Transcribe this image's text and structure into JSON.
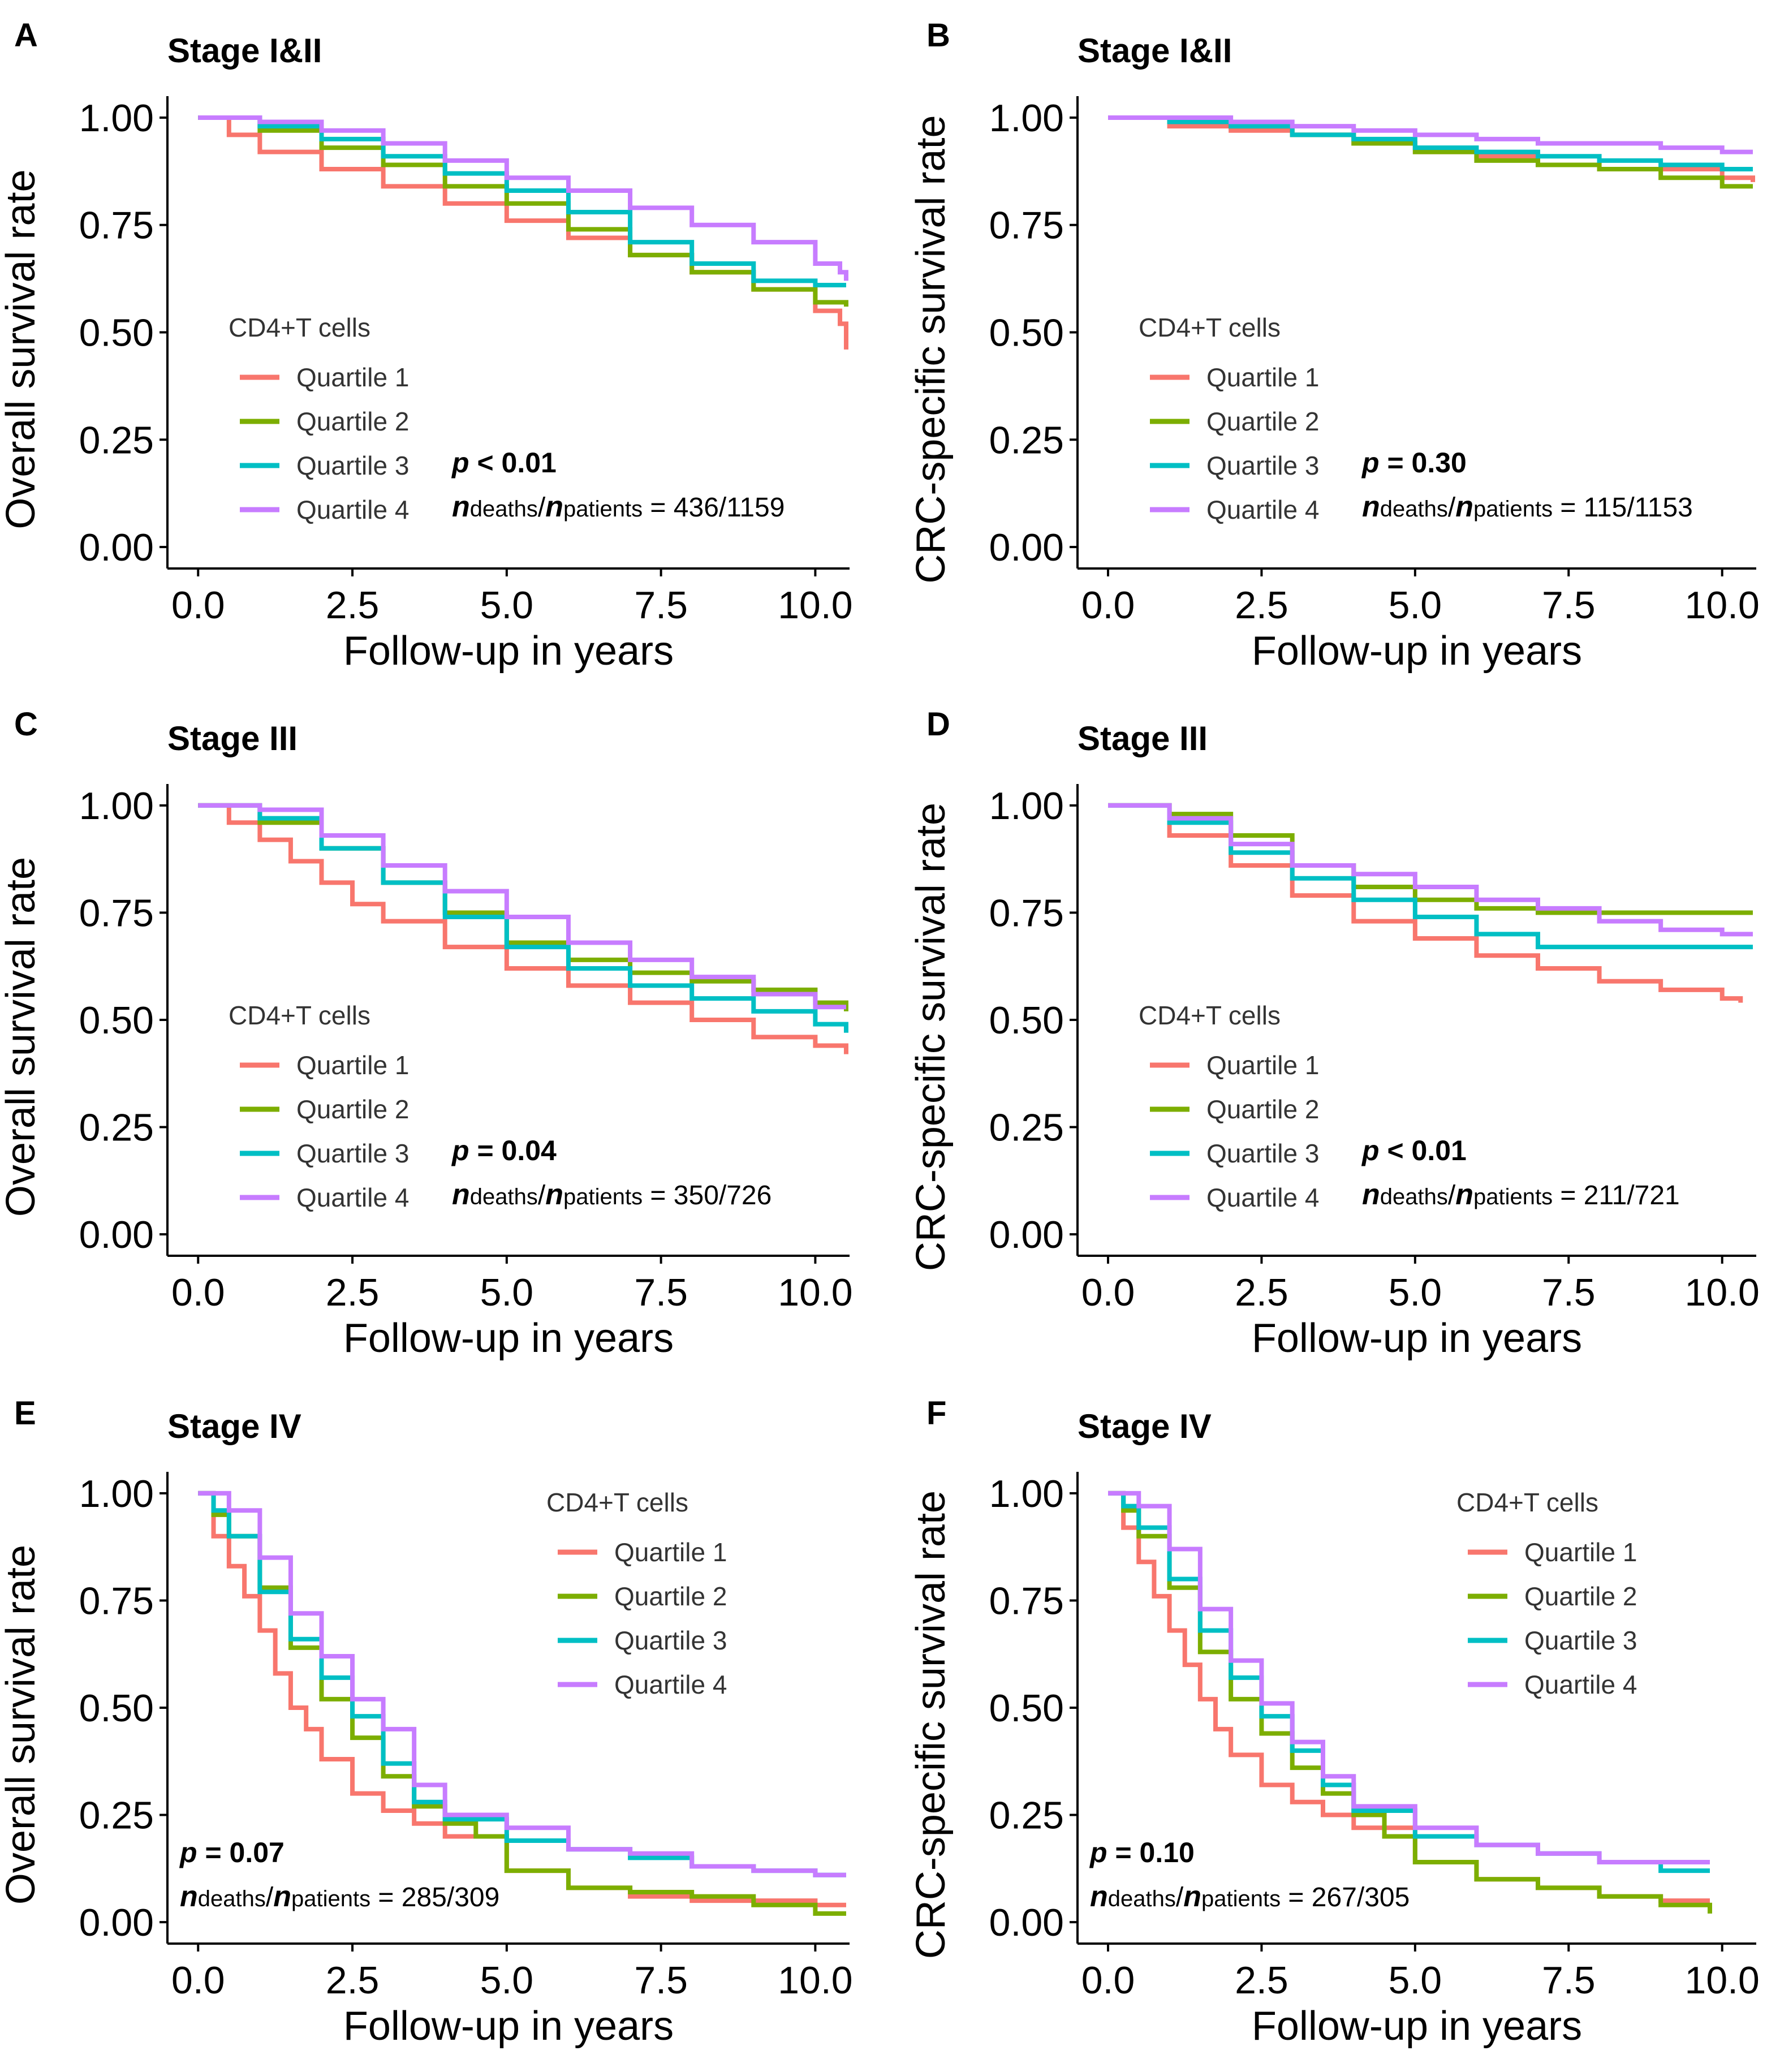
{
  "figure": {
    "legend_title": "CD4+T cells",
    "x_axis_title": "Follow-up in years",
    "series_names": [
      "Quartile 1",
      "Quartile 2",
      "Quartile 3",
      "Quartile 4"
    ],
    "series_colors": [
      "#F8766D",
      "#7CAE00",
      "#00BFC4",
      "#C77CFF"
    ]
  },
  "chart_data": [
    {
      "type": "line",
      "panel": "A",
      "title": "Stage I&II",
      "xlabel": "Follow-up in years",
      "ylabel": "Overall survival rate",
      "xlim": [
        0,
        10.5
      ],
      "ylim": [
        0,
        1
      ],
      "xticks": [
        "0.0",
        "2.5",
        "5.0",
        "7.5",
        "10.0"
      ],
      "yticks": [
        "0.00",
        "0.25",
        "0.50",
        "0.75",
        "1.00"
      ],
      "legend_position": "bottom-left",
      "p_prefix": "p",
      "p_text": " < 0.01",
      "n_text": "436/1159",
      "series": [
        {
          "name": "Quartile 1",
          "x": [
            0,
            0.5,
            1,
            2,
            3,
            4,
            5,
            6,
            7,
            8,
            9,
            10,
            10.4,
            10.5
          ],
          "y": [
            1,
            0.96,
            0.92,
            0.88,
            0.84,
            0.8,
            0.76,
            0.72,
            0.68,
            0.64,
            0.6,
            0.55,
            0.52,
            0.46
          ]
        },
        {
          "name": "Quartile 2",
          "x": [
            0,
            1,
            2,
            3,
            4,
            5,
            6,
            7,
            8,
            9,
            10,
            10.5
          ],
          "y": [
            1,
            0.97,
            0.93,
            0.89,
            0.84,
            0.8,
            0.74,
            0.68,
            0.64,
            0.6,
            0.57,
            0.56
          ]
        },
        {
          "name": "Quartile 3",
          "x": [
            0,
            1,
            2,
            3,
            4,
            5,
            6,
            7,
            8,
            9,
            10,
            10.5
          ],
          "y": [
            1,
            0.98,
            0.95,
            0.91,
            0.87,
            0.83,
            0.78,
            0.71,
            0.66,
            0.62,
            0.61,
            0.61
          ]
        },
        {
          "name": "Quartile 4",
          "x": [
            0,
            1,
            2,
            3,
            4,
            5,
            6,
            7,
            8,
            9,
            10,
            10.4,
            10.5
          ],
          "y": [
            1,
            0.99,
            0.97,
            0.94,
            0.9,
            0.86,
            0.83,
            0.79,
            0.75,
            0.71,
            0.66,
            0.64,
            0.62
          ]
        }
      ]
    },
    {
      "type": "line",
      "panel": "B",
      "title": "Stage I&II",
      "xlabel": "Follow-up in years",
      "ylabel": "CRC-specific survival rate",
      "xlim": [
        0,
        10.5
      ],
      "ylim": [
        0,
        1
      ],
      "xticks": [
        "0.0",
        "2.5",
        "5.0",
        "7.5",
        "10.0"
      ],
      "yticks": [
        "0.00",
        "0.25",
        "0.50",
        "0.75",
        "1.00"
      ],
      "legend_position": "bottom-left",
      "p_prefix": "p",
      "p_text": " = 0.30",
      "n_text": "115/1153",
      "series": [
        {
          "name": "Quartile 1",
          "x": [
            0,
            1,
            2,
            3,
            4,
            5,
            6,
            7,
            8,
            9,
            10,
            10.5
          ],
          "y": [
            1,
            0.98,
            0.97,
            0.96,
            0.94,
            0.92,
            0.91,
            0.89,
            0.88,
            0.88,
            0.86,
            0.85
          ]
        },
        {
          "name": "Quartile 2",
          "x": [
            0,
            1,
            2,
            3,
            4,
            5,
            6,
            7,
            8,
            9,
            10,
            10.5
          ],
          "y": [
            1,
            0.99,
            0.98,
            0.96,
            0.94,
            0.92,
            0.9,
            0.89,
            0.88,
            0.86,
            0.84,
            0.84
          ]
        },
        {
          "name": "Quartile 3",
          "x": [
            0,
            1,
            2,
            3,
            4,
            5,
            6,
            7,
            8,
            9,
            10,
            10.5
          ],
          "y": [
            1,
            0.99,
            0.98,
            0.96,
            0.95,
            0.93,
            0.92,
            0.91,
            0.9,
            0.89,
            0.88,
            0.88
          ]
        },
        {
          "name": "Quartile 4",
          "x": [
            0,
            1,
            2,
            3,
            4,
            5,
            6,
            7,
            8,
            9,
            10,
            10.5
          ],
          "y": [
            1,
            1,
            0.99,
            0.98,
            0.97,
            0.96,
            0.95,
            0.94,
            0.94,
            0.93,
            0.92,
            0.92
          ]
        }
      ]
    },
    {
      "type": "line",
      "panel": "C",
      "title": "Stage III",
      "xlabel": "Follow-up in years",
      "ylabel": "Overall survival rate",
      "xlim": [
        0,
        10.5
      ],
      "ylim": [
        0,
        1
      ],
      "xticks": [
        "0.0",
        "2.5",
        "5.0",
        "7.5",
        "10.0"
      ],
      "yticks": [
        "0.00",
        "0.25",
        "0.50",
        "0.75",
        "1.00"
      ],
      "legend_position": "bottom-left",
      "p_prefix": "p",
      "p_text": " = 0.04",
      "n_text": "350/726",
      "series": [
        {
          "name": "Quartile 1",
          "x": [
            0,
            0.5,
            1,
            1.5,
            2,
            2.5,
            3,
            4,
            5,
            6,
            7,
            8,
            9,
            10,
            10.5
          ],
          "y": [
            1,
            0.96,
            0.92,
            0.87,
            0.82,
            0.77,
            0.73,
            0.67,
            0.62,
            0.58,
            0.54,
            0.5,
            0.46,
            0.44,
            0.42
          ]
        },
        {
          "name": "Quartile 2",
          "x": [
            0,
            1,
            2,
            3,
            4,
            5,
            6,
            7,
            8,
            9,
            10,
            10.5
          ],
          "y": [
            1,
            0.96,
            0.9,
            0.82,
            0.75,
            0.68,
            0.64,
            0.61,
            0.59,
            0.57,
            0.54,
            0.52
          ]
        },
        {
          "name": "Quartile 3",
          "x": [
            0,
            1,
            2,
            3,
            4,
            5,
            6,
            7,
            8,
            9,
            10,
            10.5
          ],
          "y": [
            1,
            0.97,
            0.9,
            0.82,
            0.74,
            0.67,
            0.62,
            0.58,
            0.55,
            0.52,
            0.49,
            0.47
          ]
        },
        {
          "name": "Quartile 4",
          "x": [
            0,
            1,
            2,
            3,
            4,
            5,
            6,
            7,
            8,
            9,
            10,
            10.5
          ],
          "y": [
            1,
            0.99,
            0.93,
            0.86,
            0.8,
            0.74,
            0.68,
            0.64,
            0.6,
            0.56,
            0.53,
            0.53
          ]
        }
      ]
    },
    {
      "type": "line",
      "panel": "D",
      "title": "Stage III",
      "xlabel": "Follow-up in years",
      "ylabel": "CRC-specific survival rate",
      "xlim": [
        0,
        10.5
      ],
      "ylim": [
        0,
        1
      ],
      "xticks": [
        "0.0",
        "2.5",
        "5.0",
        "7.5",
        "10.0"
      ],
      "yticks": [
        "0.00",
        "0.25",
        "0.50",
        "0.75",
        "1.00"
      ],
      "legend_position": "bottom-left",
      "p_prefix": "p",
      "p_text": " < 0.01",
      "n_text": "211/721",
      "series": [
        {
          "name": "Quartile 1",
          "x": [
            0,
            1,
            2,
            3,
            4,
            5,
            6,
            7,
            8,
            9,
            10,
            10.3
          ],
          "y": [
            1,
            0.93,
            0.86,
            0.79,
            0.73,
            0.69,
            0.65,
            0.62,
            0.59,
            0.57,
            0.55,
            0.54
          ]
        },
        {
          "name": "Quartile 2",
          "x": [
            0,
            1,
            2,
            3,
            4,
            5,
            6,
            7,
            8,
            9,
            10,
            10.5
          ],
          "y": [
            1,
            0.98,
            0.93,
            0.86,
            0.81,
            0.78,
            0.76,
            0.75,
            0.75,
            0.75,
            0.75,
            0.75
          ]
        },
        {
          "name": "Quartile 3",
          "x": [
            0,
            1,
            2,
            3,
            4,
            5,
            6,
            7,
            8,
            9,
            10,
            10.5
          ],
          "y": [
            1,
            0.96,
            0.89,
            0.83,
            0.78,
            0.74,
            0.7,
            0.67,
            0.67,
            0.67,
            0.67,
            0.67
          ]
        },
        {
          "name": "Quartile 4",
          "x": [
            0,
            1,
            2,
            3,
            4,
            5,
            6,
            7,
            8,
            9,
            10,
            10.5
          ],
          "y": [
            1,
            0.97,
            0.91,
            0.86,
            0.84,
            0.81,
            0.78,
            0.76,
            0.73,
            0.71,
            0.7,
            0.7
          ]
        }
      ]
    },
    {
      "type": "line",
      "panel": "E",
      "title": "Stage IV",
      "xlabel": "Follow-up in years",
      "ylabel": "Overall survival rate",
      "xlim": [
        0,
        10.5
      ],
      "ylim": [
        0,
        1
      ],
      "xticks": [
        "0.0",
        "2.5",
        "5.0",
        "7.5",
        "10.0"
      ],
      "yticks": [
        "0.00",
        "0.25",
        "0.50",
        "0.75",
        "1.00"
      ],
      "legend_position": "top-right",
      "p_prefix": "p",
      "p_text": " = 0.07",
      "n_text": "285/309",
      "series": [
        {
          "name": "Quartile 1",
          "x": [
            0,
            0.25,
            0.5,
            0.75,
            1,
            1.25,
            1.5,
            1.75,
            2,
            2.5,
            3,
            3.5,
            4,
            5,
            6,
            7,
            8,
            9,
            10,
            10.5
          ],
          "y": [
            1,
            0.9,
            0.83,
            0.76,
            0.68,
            0.58,
            0.5,
            0.45,
            0.38,
            0.3,
            0.26,
            0.23,
            0.2,
            0.12,
            0.08,
            0.06,
            0.05,
            0.05,
            0.04,
            0.04
          ]
        },
        {
          "name": "Quartile 2",
          "x": [
            0,
            0.25,
            0.5,
            1,
            1.5,
            2,
            2.5,
            3,
            3.5,
            4,
            4.5,
            5,
            6,
            7,
            8,
            9,
            10,
            10.5
          ],
          "y": [
            1,
            0.95,
            0.9,
            0.78,
            0.64,
            0.52,
            0.43,
            0.34,
            0.27,
            0.23,
            0.2,
            0.12,
            0.08,
            0.07,
            0.06,
            0.04,
            0.02,
            0.02
          ]
        },
        {
          "name": "Quartile 3",
          "x": [
            0,
            0.25,
            0.5,
            1,
            1.5,
            2,
            2.5,
            3,
            3.5,
            4,
            5,
            6,
            7,
            8,
            9,
            10,
            10.5
          ],
          "y": [
            1,
            0.96,
            0.9,
            0.77,
            0.66,
            0.57,
            0.48,
            0.37,
            0.28,
            0.24,
            0.19,
            0.17,
            0.15,
            0.13,
            0.12,
            0.11,
            0.11
          ]
        },
        {
          "name": "Quartile 4",
          "x": [
            0,
            0.25,
            0.5,
            1,
            1.5,
            2,
            2.5,
            3,
            3.5,
            4,
            5,
            6,
            7,
            8,
            9,
            10,
            10.5
          ],
          "y": [
            1,
            1,
            0.96,
            0.85,
            0.72,
            0.62,
            0.52,
            0.45,
            0.32,
            0.25,
            0.22,
            0.17,
            0.16,
            0.13,
            0.12,
            0.11,
            0.11
          ]
        }
      ]
    },
    {
      "type": "line",
      "panel": "F",
      "title": "Stage IV",
      "xlabel": "Follow-up in years",
      "ylabel": "CRC-specific survival rate",
      "xlim": [
        0,
        10.5
      ],
      "ylim": [
        0,
        1
      ],
      "xticks": [
        "0.0",
        "2.5",
        "5.0",
        "7.5",
        "10.0"
      ],
      "yticks": [
        "0.00",
        "0.25",
        "0.50",
        "0.75",
        "1.00"
      ],
      "legend_position": "top-right",
      "p_prefix": "p",
      "p_text": " = 0.10",
      "n_text": "267/305",
      "series": [
        {
          "name": "Quartile 1",
          "x": [
            0,
            0.25,
            0.5,
            0.75,
            1,
            1.25,
            1.5,
            1.75,
            2,
            2.5,
            3,
            3.5,
            4,
            5,
            6,
            7,
            8,
            9,
            9.8
          ],
          "y": [
            1,
            0.92,
            0.84,
            0.76,
            0.68,
            0.6,
            0.52,
            0.45,
            0.39,
            0.32,
            0.28,
            0.25,
            0.22,
            0.14,
            0.1,
            0.08,
            0.06,
            0.05,
            0.05
          ]
        },
        {
          "name": "Quartile 2",
          "x": [
            0,
            0.25,
            0.5,
            1,
            1.5,
            2,
            2.5,
            3,
            3.5,
            4,
            4.5,
            5,
            6,
            7,
            8,
            9,
            9.8
          ],
          "y": [
            1,
            0.96,
            0.9,
            0.78,
            0.63,
            0.52,
            0.44,
            0.36,
            0.3,
            0.25,
            0.2,
            0.14,
            0.1,
            0.08,
            0.06,
            0.04,
            0.02
          ]
        },
        {
          "name": "Quartile 3",
          "x": [
            0,
            0.25,
            0.5,
            1,
            1.5,
            2,
            2.5,
            3,
            3.5,
            4,
            5,
            6,
            7,
            8,
            9,
            9.8
          ],
          "y": [
            1,
            0.97,
            0.92,
            0.8,
            0.68,
            0.57,
            0.48,
            0.4,
            0.32,
            0.26,
            0.2,
            0.18,
            0.16,
            0.14,
            0.12,
            0.12
          ]
        },
        {
          "name": "Quartile 4",
          "x": [
            0,
            0.25,
            0.5,
            1,
            1.5,
            2,
            2.5,
            3,
            3.5,
            4,
            5,
            6,
            7,
            8,
            9,
            9.8
          ],
          "y": [
            1,
            1,
            0.97,
            0.87,
            0.73,
            0.61,
            0.51,
            0.42,
            0.34,
            0.27,
            0.22,
            0.18,
            0.16,
            0.14,
            0.14,
            0.14
          ]
        }
      ]
    }
  ]
}
